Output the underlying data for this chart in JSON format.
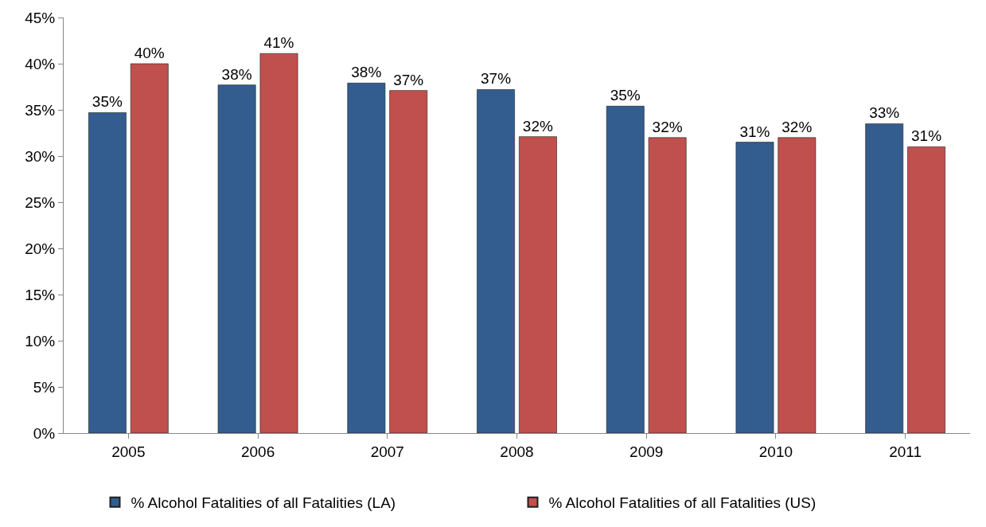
{
  "chart_data": {
    "type": "bar",
    "categories": [
      "2005",
      "2006",
      "2007",
      "2008",
      "2009",
      "2010",
      "2011"
    ],
    "series": [
      {
        "name": "% Alcohol Fatalities of all Fatalities (LA)",
        "color": "#335d8f",
        "values": [
          34.7,
          37.7,
          37.9,
          37.2,
          35.4,
          31.5,
          33.5
        ],
        "value_labels": [
          "35%",
          "38%",
          "38%",
          "37%",
          "35%",
          "31%",
          "33%"
        ]
      },
      {
        "name": "% Alcohol Fatalities of all Fatalities (US)",
        "color": "#c0504d",
        "values": [
          40.0,
          41.1,
          37.1,
          32.1,
          32.0,
          32.0,
          31.0
        ],
        "value_labels": [
          "40%",
          "41%",
          "37%",
          "32%",
          "32%",
          "32%",
          "31%"
        ]
      }
    ],
    "ylim": [
      0,
      45
    ],
    "yticks": [
      {
        "value": 0,
        "label": "0%"
      },
      {
        "value": 5,
        "label": "5%"
      },
      {
        "value": 10,
        "label": "10%"
      },
      {
        "value": 15,
        "label": "15%"
      },
      {
        "value": 20,
        "label": "20%"
      },
      {
        "value": 25,
        "label": "25%"
      },
      {
        "value": 30,
        "label": "30%"
      },
      {
        "value": 35,
        "label": "35%"
      },
      {
        "value": 40,
        "label": "40%"
      },
      {
        "value": 45,
        "label": "45%"
      }
    ],
    "legend": "bottom"
  }
}
